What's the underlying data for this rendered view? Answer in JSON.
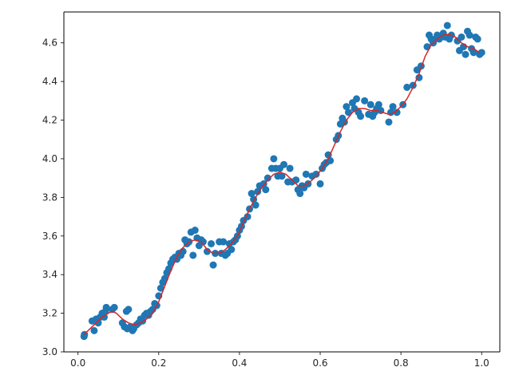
{
  "chart_data": {
    "type": "scatter",
    "title": "",
    "xlabel": "",
    "ylabel": "",
    "xlim": [
      -0.035,
      1.045
    ],
    "ylim": [
      3.0,
      4.76
    ],
    "grid": false,
    "x_ticks": [
      "0.0",
      "0.2",
      "0.4",
      "0.6",
      "0.8",
      "1.0"
    ],
    "y_ticks": [
      "3.0",
      "3.2",
      "3.4",
      "3.6",
      "3.8",
      "4.0",
      "4.2",
      "4.4",
      "4.6"
    ],
    "colors": {
      "points": "#1f77b4",
      "fit_line": "#d62728",
      "axes": "#000000"
    },
    "series": [
      {
        "kind": "scatter",
        "x": [
          0.015,
          0.016,
          0.035,
          0.04,
          0.045,
          0.05,
          0.055,
          0.06,
          0.065,
          0.068,
          0.07,
          0.085,
          0.09,
          0.11,
          0.115,
          0.12,
          0.122,
          0.125,
          0.13,
          0.135,
          0.138,
          0.145,
          0.15,
          0.155,
          0.16,
          0.165,
          0.17,
          0.175,
          0.18,
          0.185,
          0.19,
          0.195,
          0.2,
          0.205,
          0.21,
          0.215,
          0.22,
          0.225,
          0.23,
          0.235,
          0.24,
          0.245,
          0.25,
          0.255,
          0.26,
          0.265,
          0.27,
          0.275,
          0.28,
          0.285,
          0.29,
          0.295,
          0.3,
          0.305,
          0.31,
          0.32,
          0.33,
          0.335,
          0.34,
          0.35,
          0.355,
          0.36,
          0.365,
          0.37,
          0.375,
          0.38,
          0.385,
          0.39,
          0.395,
          0.4,
          0.405,
          0.41,
          0.42,
          0.425,
          0.43,
          0.435,
          0.44,
          0.445,
          0.45,
          0.46,
          0.465,
          0.47,
          0.48,
          0.485,
          0.49,
          0.495,
          0.5,
          0.505,
          0.51,
          0.52,
          0.525,
          0.53,
          0.54,
          0.545,
          0.55,
          0.555,
          0.56,
          0.565,
          0.57,
          0.58,
          0.59,
          0.6,
          0.605,
          0.61,
          0.615,
          0.62,
          0.625,
          0.64,
          0.645,
          0.65,
          0.655,
          0.66,
          0.665,
          0.67,
          0.68,
          0.685,
          0.69,
          0.695,
          0.7,
          0.71,
          0.72,
          0.725,
          0.73,
          0.735,
          0.74,
          0.745,
          0.75,
          0.77,
          0.775,
          0.78,
          0.79,
          0.805,
          0.815,
          0.83,
          0.84,
          0.845,
          0.85,
          0.865,
          0.87,
          0.875,
          0.88,
          0.885,
          0.89,
          0.895,
          0.9,
          0.905,
          0.91,
          0.915,
          0.92,
          0.925,
          0.94,
          0.945,
          0.95,
          0.955,
          0.96,
          0.965,
          0.97,
          0.975,
          0.98,
          0.985,
          0.99,
          0.995,
          1.0
        ],
        "y": [
          3.08,
          3.09,
          3.16,
          3.11,
          3.17,
          3.15,
          3.18,
          3.2,
          3.18,
          3.21,
          3.23,
          3.22,
          3.23,
          3.15,
          3.13,
          3.21,
          3.12,
          3.22,
          3.13,
          3.11,
          3.12,
          3.14,
          3.15,
          3.17,
          3.16,
          3.19,
          3.2,
          3.19,
          3.21,
          3.22,
          3.25,
          3.24,
          3.29,
          3.33,
          3.36,
          3.38,
          3.41,
          3.43,
          3.46,
          3.48,
          3.49,
          3.48,
          3.51,
          3.5,
          3.52,
          3.58,
          3.56,
          3.57,
          3.62,
          3.5,
          3.63,
          3.59,
          3.55,
          3.58,
          3.57,
          3.52,
          3.56,
          3.45,
          3.51,
          3.57,
          3.51,
          3.57,
          3.5,
          3.51,
          3.56,
          3.53,
          3.57,
          3.58,
          3.6,
          3.63,
          3.65,
          3.68,
          3.7,
          3.74,
          3.82,
          3.79,
          3.76,
          3.83,
          3.86,
          3.87,
          3.84,
          3.9,
          3.95,
          4.0,
          3.95,
          3.91,
          3.95,
          3.91,
          3.97,
          3.88,
          3.95,
          3.88,
          3.89,
          3.84,
          3.82,
          3.86,
          3.85,
          3.92,
          3.87,
          3.91,
          3.92,
          3.87,
          3.95,
          3.97,
          3.98,
          4.02,
          3.99,
          4.1,
          4.12,
          4.18,
          4.21,
          4.19,
          4.27,
          4.24,
          4.29,
          4.26,
          4.31,
          4.24,
          4.22,
          4.3,
          4.23,
          4.28,
          4.22,
          4.24,
          4.26,
          4.28,
          4.25,
          4.19,
          4.24,
          4.27,
          4.24,
          4.28,
          4.37,
          4.38,
          4.46,
          4.42,
          4.48,
          4.58,
          4.64,
          4.62,
          4.6,
          4.62,
          4.64,
          4.62,
          4.63,
          4.65,
          4.63,
          4.69,
          4.62,
          4.64,
          4.61,
          4.56,
          4.63,
          4.58,
          4.54,
          4.66,
          4.64,
          4.57,
          4.55,
          4.63,
          4.62,
          4.54,
          4.55
        ]
      },
      {
        "kind": "line",
        "x": [
          0.015,
          0.03,
          0.045,
          0.06,
          0.075,
          0.085,
          0.095,
          0.11,
          0.125,
          0.14,
          0.155,
          0.17,
          0.185,
          0.2,
          0.215,
          0.23,
          0.245,
          0.26,
          0.275,
          0.29,
          0.305,
          0.32,
          0.335,
          0.35,
          0.365,
          0.38,
          0.395,
          0.41,
          0.425,
          0.44,
          0.455,
          0.47,
          0.485,
          0.5,
          0.515,
          0.53,
          0.545,
          0.56,
          0.575,
          0.59,
          0.605,
          0.62,
          0.635,
          0.65,
          0.665,
          0.68,
          0.695,
          0.71,
          0.725,
          0.74,
          0.755,
          0.77,
          0.785,
          0.8,
          0.815,
          0.83,
          0.845,
          0.86,
          0.875,
          0.89,
          0.905,
          0.92,
          0.935,
          0.95,
          0.965,
          0.98,
          0.995
        ],
        "y": [
          3.09,
          3.12,
          3.15,
          3.18,
          3.2,
          3.21,
          3.2,
          3.17,
          3.15,
          3.14,
          3.15,
          3.17,
          3.2,
          3.26,
          3.34,
          3.42,
          3.49,
          3.54,
          3.57,
          3.58,
          3.57,
          3.53,
          3.51,
          3.51,
          3.53,
          3.56,
          3.6,
          3.67,
          3.74,
          3.8,
          3.85,
          3.89,
          3.92,
          3.93,
          3.92,
          3.89,
          3.86,
          3.86,
          3.88,
          3.91,
          3.95,
          4.0,
          4.07,
          4.14,
          4.2,
          4.24,
          4.26,
          4.26,
          4.25,
          4.25,
          4.24,
          4.23,
          4.24,
          4.27,
          4.31,
          4.37,
          4.44,
          4.53,
          4.59,
          4.62,
          4.64,
          4.645,
          4.63,
          4.6,
          4.58,
          4.57,
          4.55
        ]
      }
    ]
  }
}
